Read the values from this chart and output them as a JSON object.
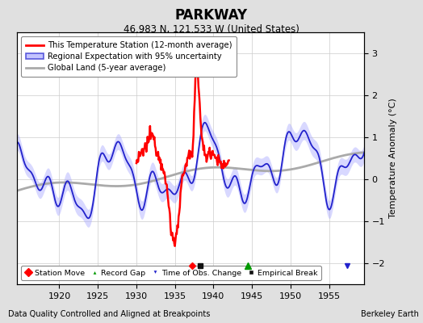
{
  "title": "PARKWAY",
  "subtitle": "46.983 N, 121.533 W (United States)",
  "xlabel_left": "Data Quality Controlled and Aligned at Breakpoints",
  "xlabel_right": "Berkeley Earth",
  "ylabel": "Temperature Anomaly (°C)",
  "xlim": [
    1914.5,
    1959.5
  ],
  "ylim": [
    -2.5,
    3.5
  ],
  "yticks": [
    -2,
    -1,
    0,
    1,
    2,
    3
  ],
  "xticks": [
    1920,
    1925,
    1930,
    1935,
    1940,
    1945,
    1950,
    1955
  ],
  "background_color": "#e0e0e0",
  "plot_bg_color": "#ffffff",
  "legend_line_color": "#ff0000",
  "legend_band_color": "#aaaaff",
  "legend_band_edge": "#3333cc",
  "legend_gray_color": "#bbbbbb",
  "blue_line_color": "#2222cc",
  "red_line_color": "#ff0000",
  "gray_line_color": "#aaaaaa",
  "band_alpha": 0.45,
  "grid_color": "#cccccc",
  "marker_empirical_x": 1938.3,
  "marker_recordgap_x": 1944.5,
  "marker_timeobs_x": 1957.3,
  "marker_stationmove_x": 1937.2
}
